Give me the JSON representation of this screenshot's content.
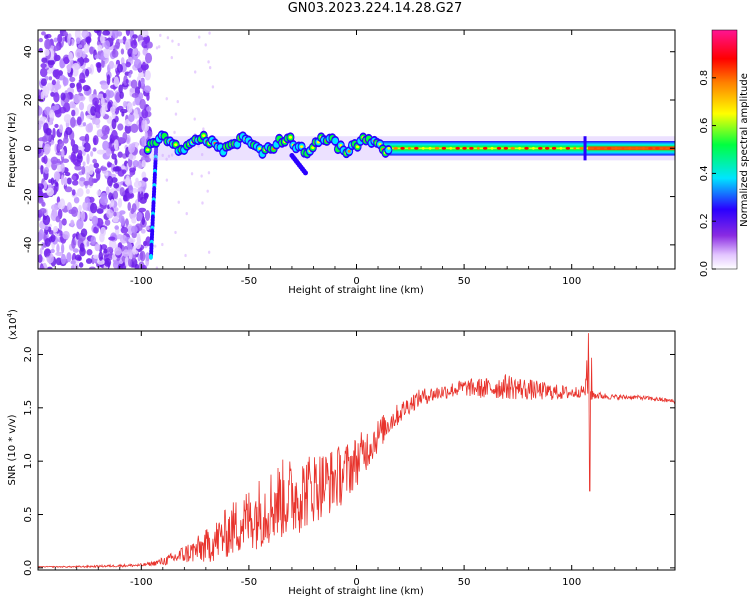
{
  "title": "GN03.2023.224.14.28.G27",
  "chart_data": [
    {
      "type": "heatmap",
      "xlabel": "Height of straight line (km)",
      "ylabel": "Frequency (Hz)",
      "xlim": [
        -148,
        148
      ],
      "ylim": [
        -50,
        49
      ],
      "x_ticks": [
        -100,
        -50,
        0,
        50,
        100
      ],
      "y_ticks": [
        -40,
        -20,
        0,
        20,
        40
      ],
      "grid": false,
      "colorbar": {
        "label": "Normalized spectral amplitude",
        "range": [
          0,
          1
        ],
        "ticks": [
          0.0,
          0.2,
          0.4,
          0.6,
          0.8
        ],
        "tick_labels": [
          "0.0",
          "0.2",
          "0.4",
          "0.6",
          "0.8"
        ],
        "colormap": [
          "#ffffff",
          "#e2c4ff",
          "#8a2be2",
          "#2a00ff",
          "#00e5ff",
          "#00ff40",
          "#ffff00",
          "#ff8000",
          "#ff0000",
          "#ff1493"
        ]
      },
      "noise_region_x": [
        -148,
        -96
      ],
      "bright_line_x": [
        -100,
        148
      ],
      "bright_line_freq": 0.0,
      "bright_line_peak_intensity": 0.85
    },
    {
      "type": "line",
      "xlabel": "Height of straight line (km)",
      "ylabel": "SNR (10 * v/v)",
      "multiplier_label": "(x10",
      "multiplier_exponent": "4",
      "xlim": [
        -148,
        148
      ],
      "ylim": [
        -0.02,
        2.22
      ],
      "x_ticks": [
        -100,
        -50,
        0,
        50,
        100
      ],
      "y_ticks": [
        0.0,
        0.5,
        1.0,
        1.5,
        2.0
      ],
      "y_tick_labels": [
        "0.0",
        "0.5",
        "1.0",
        "1.5",
        "2.0"
      ],
      "grid": false,
      "color": "#e8332c",
      "x": [
        -148,
        -140,
        -130,
        -120,
        -110,
        -100,
        -95,
        -90,
        -85,
        -80,
        -75,
        -70,
        -65,
        -60,
        -55,
        -50,
        -45,
        -40,
        -35,
        -30,
        -25,
        -20,
        -15,
        -10,
        -5,
        0,
        5,
        10,
        15,
        20,
        25,
        30,
        40,
        50,
        60,
        70,
        80,
        90,
        100,
        106,
        108,
        110,
        115,
        120,
        130,
        140,
        148
      ],
      "y": [
        0.01,
        0.01,
        0.01,
        0.015,
        0.02,
        0.025,
        0.04,
        0.06,
        0.09,
        0.13,
        0.16,
        0.2,
        0.26,
        0.33,
        0.4,
        0.46,
        0.52,
        0.58,
        0.64,
        0.66,
        0.7,
        0.76,
        0.79,
        0.83,
        0.9,
        1.0,
        1.12,
        1.24,
        1.36,
        1.45,
        1.54,
        1.6,
        1.65,
        1.69,
        1.68,
        1.7,
        1.67,
        1.65,
        1.64,
        1.66,
        1.8,
        1.62,
        1.61,
        1.6,
        1.6,
        1.58,
        1.56
      ],
      "noise_amplitude": [
        0.005,
        0.005,
        0.008,
        0.01,
        0.012,
        0.015,
        0.02,
        0.04,
        0.06,
        0.09,
        0.12,
        0.16,
        0.2,
        0.24,
        0.28,
        0.3,
        0.34,
        0.36,
        0.38,
        0.38,
        0.36,
        0.34,
        0.32,
        0.3,
        0.28,
        0.24,
        0.2,
        0.16,
        0.12,
        0.1,
        0.09,
        0.08,
        0.07,
        0.08,
        0.1,
        0.12,
        0.1,
        0.08,
        0.06,
        0.05,
        0.4,
        0.04,
        0.03,
        0.025,
        0.02,
        0.02,
        0.02
      ],
      "spikes": [
        [
          107.8,
          2.2
        ],
        [
          108.4,
          0.72
        ],
        [
          109.3,
          1.97
        ]
      ]
    }
  ]
}
